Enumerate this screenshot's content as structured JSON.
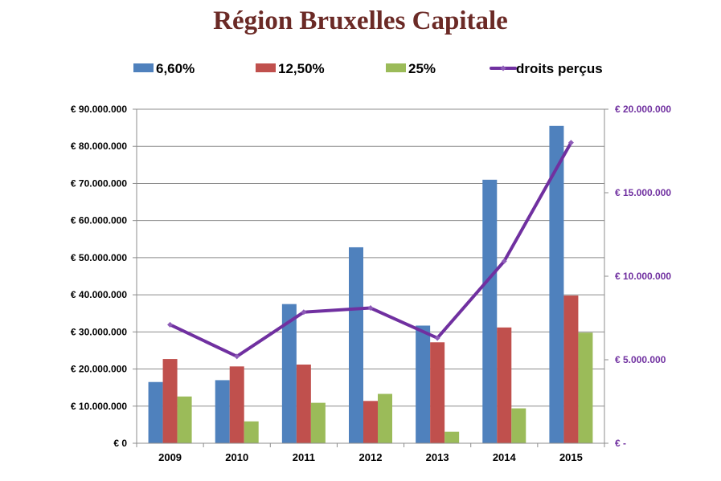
{
  "chart_data": {
    "type": "bar",
    "title": "Région Bruxelles Capitale",
    "categories": [
      "2009",
      "2010",
      "2011",
      "2012",
      "2013",
      "2014",
      "2015"
    ],
    "series": [
      {
        "name": "6,60%",
        "axis": "left",
        "color": "#4f81bd",
        "values": [
          16500000,
          17000000,
          37500000,
          52800000,
          31700000,
          71000000,
          85500000
        ]
      },
      {
        "name": "12,50%",
        "axis": "left",
        "color": "#c0504d",
        "values": [
          22700000,
          20700000,
          21200000,
          11400000,
          27200000,
          31200000,
          39800000
        ]
      },
      {
        "name": "25%",
        "axis": "left",
        "color": "#9bbb59",
        "values": [
          12600000,
          5900000,
          10900000,
          13300000,
          3100000,
          9400000,
          29800000
        ]
      },
      {
        "name": "droits perçus",
        "type": "line",
        "axis": "right",
        "color": "#7030a0",
        "values": [
          7100000,
          5200000,
          7850000,
          8100000,
          6300000,
          10900000,
          18000000
        ]
      }
    ],
    "y_left": {
      "range": [
        0,
        90000000
      ],
      "ticks": [
        0,
        10000000,
        20000000,
        30000000,
        40000000,
        50000000,
        60000000,
        70000000,
        80000000,
        90000000
      ],
      "tick_labels": [
        "€ 0",
        "€ 10.000.000",
        "€ 20.000.000",
        "€ 30.000.000",
        "€ 40.000.000",
        "€ 50.000.000",
        "€ 60.000.000",
        "€ 70.000.000",
        "€ 80.000.000",
        "€ 90.000.000"
      ]
    },
    "y_right": {
      "range": [
        0,
        20000000
      ],
      "ticks": [
        0,
        5000000,
        10000000,
        15000000,
        20000000
      ],
      "tick_labels": [
        "€ -",
        "€ 5.000.000",
        "€ 10.000.000",
        "€ 15.000.000",
        "€ 20.000.000"
      ]
    },
    "grid": true,
    "legend_position": "top"
  }
}
